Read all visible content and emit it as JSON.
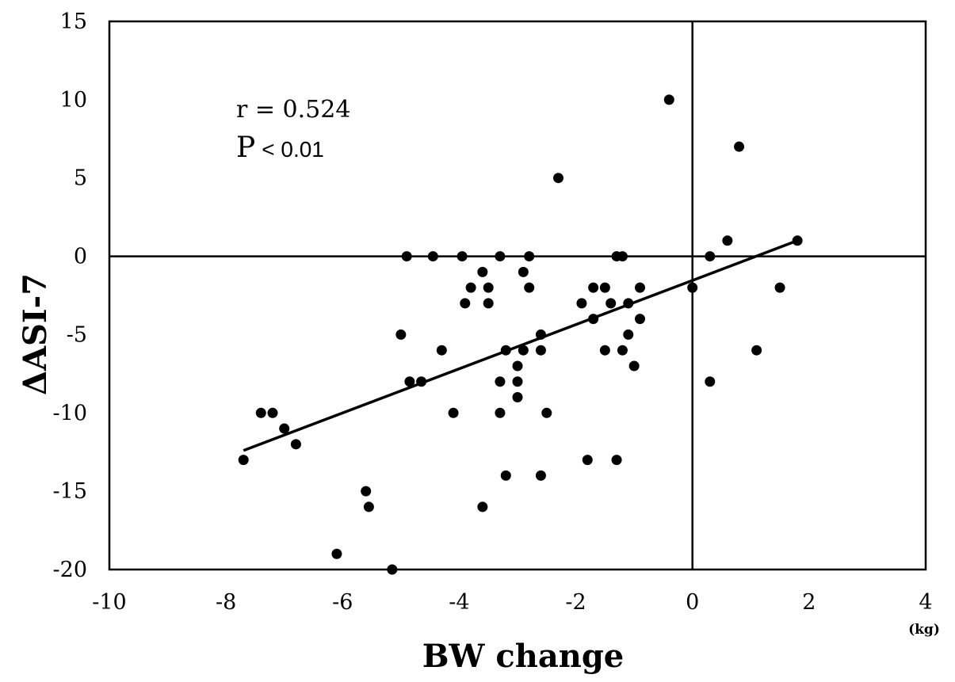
{
  "chart_data": {
    "type": "scatter",
    "xlabel": "BW change",
    "x_unit": "(kg)",
    "ylabel": "ΔASI-7",
    "xlim": [
      -10,
      4
    ],
    "ylim": [
      -20,
      15
    ],
    "x_ticks": [
      "-10",
      "-8",
      "-6",
      "-4",
      "-2",
      "0",
      "2",
      "4"
    ],
    "y_ticks": [
      "15",
      "10",
      "5",
      "0",
      "-5",
      "-10",
      "-15",
      "-20"
    ],
    "reference_lines": {
      "x": 0,
      "y": 0
    },
    "grid": false,
    "annotations": {
      "r_text": "r = 0.524",
      "p_letter": "P",
      "p_rest": "< 0.01"
    },
    "regression_line": {
      "x": [
        -7.7,
        1.8
      ],
      "y": [
        -12.4,
        1.0
      ]
    },
    "series": [
      {
        "points": [
          [
            -7.7,
            -13
          ],
          [
            -7.4,
            -10
          ],
          [
            -7.2,
            -10
          ],
          [
            -7.0,
            -11
          ],
          [
            -6.8,
            -12
          ],
          [
            -6.1,
            -19
          ],
          [
            -5.6,
            -15
          ],
          [
            -5.55,
            -16
          ],
          [
            -5.15,
            -20
          ],
          [
            -5.0,
            -5
          ],
          [
            -4.9,
            0
          ],
          [
            -4.85,
            -8
          ],
          [
            -4.65,
            -8
          ],
          [
            -4.45,
            0
          ],
          [
            -4.3,
            -6
          ],
          [
            -4.1,
            -10
          ],
          [
            -3.95,
            0
          ],
          [
            -3.9,
            -3
          ],
          [
            -3.8,
            -2
          ],
          [
            -3.6,
            -1
          ],
          [
            -3.6,
            -16
          ],
          [
            -3.5,
            -2
          ],
          [
            -3.5,
            -3
          ],
          [
            -3.3,
            0
          ],
          [
            -3.3,
            -8
          ],
          [
            -3.3,
            -10
          ],
          [
            -3.2,
            -6
          ],
          [
            -3.2,
            -14
          ],
          [
            -3.0,
            -7
          ],
          [
            -3.0,
            -8
          ],
          [
            -3.0,
            -9
          ],
          [
            -2.9,
            -1
          ],
          [
            -2.9,
            -6
          ],
          [
            -2.8,
            0
          ],
          [
            -2.8,
            -2
          ],
          [
            -2.6,
            -5
          ],
          [
            -2.6,
            -6
          ],
          [
            -2.6,
            -14
          ],
          [
            -2.5,
            -10
          ],
          [
            -2.3,
            5
          ],
          [
            -1.9,
            -3
          ],
          [
            -1.8,
            -13
          ],
          [
            -1.7,
            -2
          ],
          [
            -1.7,
            -4
          ],
          [
            -1.5,
            -2
          ],
          [
            -1.5,
            -6
          ],
          [
            -1.4,
            -3
          ],
          [
            -1.3,
            0
          ],
          [
            -1.3,
            -13
          ],
          [
            -1.2,
            0
          ],
          [
            -1.2,
            -6
          ],
          [
            -1.1,
            -3
          ],
          [
            -1.1,
            -5
          ],
          [
            -1.0,
            -7
          ],
          [
            -0.9,
            -2
          ],
          [
            -0.9,
            -4
          ],
          [
            -0.4,
            10
          ],
          [
            0.0,
            -2
          ],
          [
            0.3,
            0
          ],
          [
            0.3,
            -8
          ],
          [
            0.6,
            1
          ],
          [
            0.8,
            7
          ],
          [
            1.1,
            -6
          ],
          [
            1.5,
            -2
          ],
          [
            1.8,
            1
          ]
        ]
      }
    ]
  }
}
